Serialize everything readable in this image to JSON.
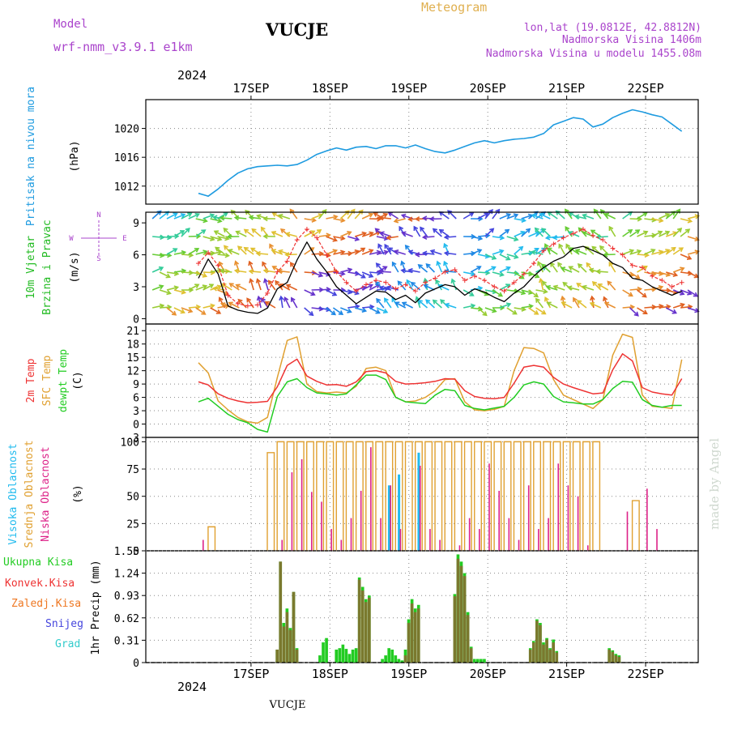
{
  "header": {
    "model_label": "Model",
    "model_name": "wrf-nmm_v3.9.1  e1km",
    "station": "VUCJE",
    "product": "Meteogram",
    "coords": "lon,lat (19.0812E, 42.8812N)",
    "elevation": "Nadmorska Visina 1406m",
    "model_elevation": "Nadmorska Visina u modelu 1455.08m",
    "year_top": "2024",
    "year_bottom": "2024",
    "footer_station": "VUCJE",
    "watermark": "made by Angel"
  },
  "days": [
    "17SEP",
    "18SEP",
    "19SEP",
    "20SEP",
    "21SEP",
    "22SEP"
  ],
  "colors": {
    "pressure": "#1e9be0",
    "wind_label": "#22bb22",
    "temp2m": "#ee3333",
    "sfc_temp": "#e0a030",
    "dewpt": "#22cc22",
    "cloud_high": "#22bbee",
    "cloud_mid": "#e0a030",
    "cloud_low": "#dd2288",
    "precip_total": "#22cc22",
    "precip_conv": "#ee3333",
    "precip_frozen": "#ee7722",
    "snow": "#4444dd",
    "graupel": "#33cccc",
    "axis_label": "#000000",
    "purple": "#aa44cc"
  },
  "chart_data": [
    {
      "type": "line",
      "panel": "pressure",
      "ylabel": "(hPa)",
      "side_label": "Pritisak na nivou mora",
      "yticks": [
        1012,
        1016,
        1020
      ],
      "ylim": [
        1009.5,
        1024
      ],
      "x_hours": [
        0,
        3,
        6,
        9,
        12,
        15,
        18,
        21,
        24,
        27,
        30,
        33,
        36,
        39,
        42,
        45,
        48,
        51,
        54,
        57,
        60,
        63,
        66,
        69,
        72,
        75,
        78,
        81,
        84,
        87,
        90,
        93,
        96,
        99,
        102,
        105,
        108,
        111,
        114,
        117,
        120,
        123,
        126,
        129,
        132,
        135,
        138,
        141,
        144,
        147
      ],
      "series": [
        {
          "values": [
            1011.0,
            1010.6,
            1011.6,
            1012.8,
            1013.8,
            1014.4,
            1014.7,
            1014.8,
            1014.9,
            1014.8,
            1015.0,
            1015.6,
            1016.4,
            1016.9,
            1017.3,
            1017.0,
            1017.4,
            1017.5,
            1017.2,
            1017.6,
            1017.6,
            1017.3,
            1017.7,
            1017.2,
            1016.8,
            1016.6,
            1017.0,
            1017.5,
            1018.0,
            1018.3,
            1018.0,
            1018.3,
            1018.5,
            1018.6,
            1018.8,
            1019.3,
            1020.5,
            1021.0,
            1021.5,
            1021.3,
            1020.2,
            1020.6,
            1021.5,
            1022.1,
            1022.6,
            1022.3,
            1021.9,
            1021.6,
            1020.6,
            1019.6
          ]
        }
      ]
    },
    {
      "type": "line",
      "panel": "wind",
      "ylabel": "(m/s)",
      "side_label_1": "10m Vjetar",
      "side_label_2": "Brzina i Pravac",
      "compass": [
        "N",
        "S",
        "W",
        "E"
      ],
      "yticks": [
        0,
        3,
        6,
        9
      ],
      "ylim": [
        -0.5,
        10
      ],
      "x_hours": [
        0,
        3,
        6,
        9,
        12,
        15,
        18,
        21,
        24,
        27,
        30,
        33,
        36,
        39,
        42,
        45,
        48,
        51,
        54,
        57,
        60,
        63,
        66,
        69,
        72,
        75,
        78,
        81,
        84,
        87,
        90,
        93,
        96,
        99,
        102,
        105,
        108,
        111,
        114,
        117,
        120,
        123,
        126,
        129,
        132,
        135,
        138,
        141,
        144,
        147
      ],
      "series": [
        {
          "name": "speed",
          "values": [
            3.8,
            5.6,
            4.2,
            1.2,
            0.8,
            0.6,
            0.5,
            1.0,
            2.8,
            3.4,
            5.5,
            7.2,
            5.6,
            4.4,
            3.0,
            2.2,
            1.4,
            2.0,
            2.6,
            2.5,
            1.8,
            2.2,
            1.5,
            2.4,
            2.8,
            3.2,
            3.0,
            2.2,
            2.8,
            2.5,
            2.0,
            1.6,
            2.4,
            3.0,
            4.0,
            4.8,
            5.4,
            5.8,
            6.6,
            6.8,
            6.4,
            6.0,
            5.2,
            4.8,
            3.8,
            3.6,
            3.0,
            2.6,
            2.2,
            2.6
          ]
        },
        {
          "name": "gust",
          "values": [
            5.2,
            6.2,
            5.0,
            2.2,
            1.4,
            1.2,
            1.3,
            2.4,
            4.4,
            5.4,
            7.4,
            8.4,
            7.6,
            6.0,
            4.4,
            3.4,
            2.6,
            3.2,
            3.6,
            3.4,
            2.8,
            3.2,
            2.6,
            3.4,
            3.8,
            4.4,
            4.6,
            3.6,
            4.0,
            3.6,
            3.0,
            2.6,
            3.4,
            4.2,
            5.2,
            6.4,
            7.0,
            7.6,
            8.0,
            8.4,
            7.8,
            7.4,
            6.6,
            6.0,
            5.0,
            4.8,
            4.0,
            3.6,
            3.0,
            3.4
          ]
        }
      ]
    },
    {
      "type": "line",
      "panel": "temperature",
      "ylabel": "(C)",
      "side_label_1": "2m Temp",
      "side_label_2": "SFC Temp",
      "side_label_3": "dewpt Temp",
      "yticks": [
        -3,
        0,
        3,
        6,
        9,
        12,
        15,
        18,
        21
      ],
      "ylim": [
        -3,
        22.5
      ],
      "x_hours": [
        0,
        3,
        6,
        9,
        12,
        15,
        18,
        21,
        24,
        27,
        30,
        33,
        36,
        39,
        42,
        45,
        48,
        51,
        54,
        57,
        60,
        63,
        66,
        69,
        72,
        75,
        78,
        81,
        84,
        87,
        90,
        93,
        96,
        99,
        102,
        105,
        108,
        111,
        114,
        117,
        120,
        123,
        126,
        129,
        132,
        135,
        138,
        141,
        144,
        147
      ],
      "series": [
        {
          "name": "2m Temp",
          "values": [
            9.5,
            8.8,
            6.8,
            5.8,
            5.2,
            4.8,
            4.9,
            5.1,
            8.4,
            13.2,
            14.6,
            10.8,
            9.6,
            8.8,
            8.9,
            8.5,
            9.5,
            11.8,
            12.0,
            11.5,
            9.6,
            9.0,
            9.1,
            9.3,
            9.6,
            10.2,
            10.1,
            7.5,
            6.2,
            5.8,
            5.7,
            6.0,
            9.2,
            12.8,
            13.2,
            12.8,
            10.5,
            9.0,
            8.2,
            7.5,
            6.8,
            7.0,
            12.2,
            15.8,
            14.2,
            8.2,
            7.2,
            6.8,
            6.5,
            10.2
          ]
        },
        {
          "name": "SFC Temp",
          "values": [
            13.8,
            11.5,
            5.2,
            3.2,
            1.5,
            0.5,
            0.2,
            1.5,
            10.5,
            18.8,
            19.6,
            9.0,
            7.3,
            7.0,
            7.2,
            7.0,
            8.5,
            12.5,
            12.8,
            12.0,
            6.0,
            5.0,
            5.2,
            6.0,
            7.5,
            10.0,
            10.2,
            5.0,
            3.2,
            3.0,
            3.3,
            4.0,
            12.0,
            17.2,
            17.0,
            16.0,
            10.0,
            6.5,
            5.5,
            4.5,
            3.5,
            5.5,
            15.5,
            20.2,
            19.5,
            6.5,
            4.0,
            3.8,
            3.5,
            14.5
          ]
        },
        {
          "name": "dewpt Temp",
          "values": [
            5.0,
            5.8,
            4.0,
            2.2,
            1.0,
            0.3,
            -1.2,
            -1.8,
            6.2,
            9.5,
            10.2,
            8.2,
            7.0,
            6.8,
            6.5,
            6.8,
            8.8,
            11.0,
            11.0,
            10.0,
            6.0,
            5.0,
            4.8,
            4.6,
            6.5,
            7.8,
            7.5,
            4.2,
            3.5,
            3.2,
            3.6,
            4.0,
            6.0,
            8.8,
            9.5,
            9.0,
            6.2,
            5.0,
            4.8,
            4.5,
            4.5,
            5.5,
            8.0,
            9.6,
            9.4,
            5.5,
            4.2,
            3.8,
            4.2,
            4.2
          ]
        }
      ]
    },
    {
      "type": "bar",
      "panel": "cloud",
      "ylabel": "(%)",
      "side_label_1": "Visoka Oblacnost",
      "side_label_2": "Srednja Oblacnost",
      "side_label_3": "Niska Oblacnost",
      "yticks": [
        0,
        25,
        50,
        75,
        100
      ],
      "ylim": [
        0,
        104
      ],
      "x_hours": [
        1,
        4,
        7,
        10,
        13,
        16,
        19,
        22,
        25,
        28,
        31,
        34,
        37,
        40,
        43,
        46,
        49,
        52,
        55,
        58,
        61,
        64,
        67,
        70,
        73,
        76,
        79,
        82,
        85,
        88,
        91,
        94,
        97,
        100,
        103,
        106,
        109,
        112,
        115,
        118,
        121,
        124,
        127,
        130,
        133,
        136,
        139,
        142,
        145,
        148
      ],
      "series": [
        {
          "name": "Visoka Oblacnost",
          "values": [
            0,
            0,
            0,
            0,
            0,
            0,
            0,
            0,
            0,
            0,
            0,
            0,
            0,
            0,
            0,
            0,
            0,
            0,
            0,
            60,
            70,
            0,
            90,
            0,
            0,
            0,
            0,
            0,
            0,
            0,
            0,
            0,
            0,
            0,
            0,
            0,
            0,
            0,
            0,
            0,
            0,
            0,
            0,
            0,
            0,
            0,
            0,
            0,
            0,
            0
          ]
        },
        {
          "name": "Srednja Oblacnost",
          "values": [
            0,
            22,
            0,
            0,
            0,
            0,
            0,
            90,
            100,
            100,
            100,
            100,
            100,
            100,
            100,
            100,
            100,
            100,
            100,
            100,
            100,
            100,
            100,
            100,
            100,
            100,
            100,
            100,
            100,
            100,
            100,
            100,
            100,
            100,
            100,
            100,
            100,
            100,
            100,
            100,
            100,
            0,
            0,
            0,
            46,
            0,
            0,
            0,
            0,
            0
          ]
        },
        {
          "name": "Niska Oblacnost",
          "values": [
            10,
            0,
            0,
            0,
            0,
            0,
            0,
            0,
            10,
            72,
            84,
            54,
            45,
            20,
            10,
            30,
            55,
            95,
            30,
            60,
            20,
            0,
            78,
            20,
            10,
            0,
            5,
            30,
            20,
            80,
            55,
            30,
            10,
            60,
            20,
            30,
            80,
            60,
            50,
            5,
            0,
            0,
            0,
            36,
            0,
            57,
            20,
            0,
            0,
            0
          ]
        }
      ]
    },
    {
      "type": "bar",
      "panel": "precip",
      "ylabel": "1hr Precip (mm)",
      "side_label_1": "Ukupna Kisa",
      "side_label_2": "Konvek.Kisa",
      "side_label_3": "Zaledj.Kisa",
      "side_label_4": "Snijeg",
      "side_label_5": "Grad",
      "ytick_labels": [
        "0",
        "0.31",
        "0.62",
        "0.93",
        "1.24",
        "1.55"
      ],
      "ylim": [
        0,
        1.55
      ],
      "x_hours": [
        24,
        25,
        26,
        27,
        28,
        29,
        30,
        37,
        38,
        39,
        42,
        43,
        44,
        45,
        46,
        47,
        48,
        49,
        50,
        51,
        52,
        56,
        57,
        58,
        59,
        60,
        61,
        62,
        63,
        64,
        65,
        66,
        67,
        78,
        79,
        80,
        81,
        82,
        83,
        84,
        85,
        86,
        87,
        101,
        102,
        103,
        104,
        105,
        106,
        107,
        108,
        109,
        125,
        126,
        127,
        128
      ],
      "series": [
        {
          "name": "Ukupna Kisa",
          "values": [
            0.18,
            1.4,
            0.55,
            0.75,
            0.48,
            0.98,
            0.2,
            0.1,
            0.28,
            0.34,
            0.18,
            0.2,
            0.25,
            0.19,
            0.12,
            0.18,
            0.2,
            1.18,
            1.05,
            0.88,
            0.93,
            0.05,
            0.1,
            0.2,
            0.18,
            0.1,
            0.05,
            0.03,
            0.18,
            0.6,
            0.88,
            0.75,
            0.8,
            0.95,
            1.5,
            1.4,
            1.24,
            0.7,
            0.22,
            0.05,
            0.05,
            0.05,
            0.05,
            0.2,
            0.3,
            0.6,
            0.55,
            0.28,
            0.34,
            0.2,
            0.32,
            0.16,
            0.2,
            0.17,
            0.12,
            0.1
          ]
        },
        {
          "name": "Konvek.Kisa",
          "values": [
            0.18,
            1.4,
            0.5,
            0.7,
            0.45,
            0.98,
            0.18,
            0,
            0,
            0,
            0,
            0,
            0,
            0,
            0,
            0,
            0,
            1.15,
            1.0,
            0.84,
            0.9,
            0,
            0,
            0,
            0,
            0,
            0,
            0,
            0.1,
            0.55,
            0.82,
            0.7,
            0.75,
            0.92,
            1.44,
            1.34,
            1.2,
            0.66,
            0.2,
            0,
            0,
            0,
            0,
            0.18,
            0.28,
            0.58,
            0.52,
            0.25,
            0.32,
            0.18,
            0.28,
            0.14,
            0.18,
            0.15,
            0.1,
            0.08
          ]
        }
      ]
    }
  ]
}
